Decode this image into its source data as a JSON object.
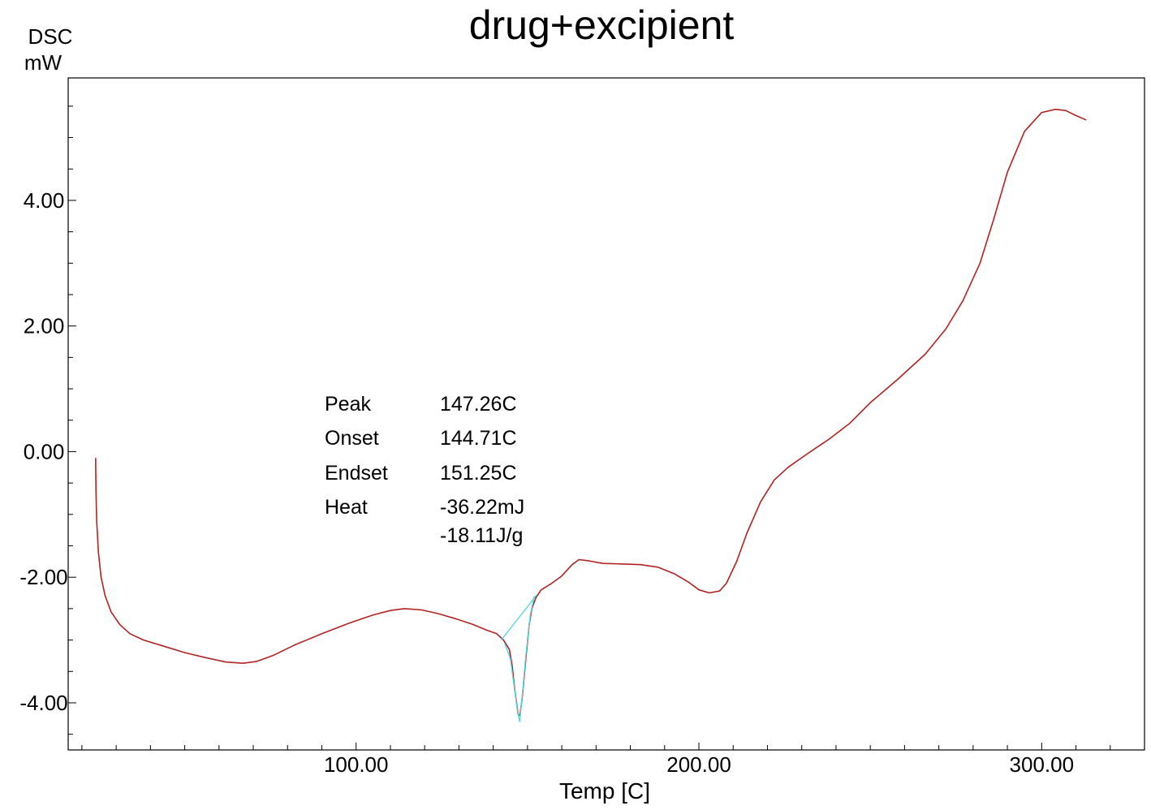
{
  "chart_data": {
    "type": "line",
    "title": "drug+excipient",
    "ylabel": [
      "DSC",
      "mW"
    ],
    "xlabel": "Temp  [C]",
    "xlim": [
      16,
      330
    ],
    "ylim": [
      -4.75,
      5.95
    ],
    "grid": false,
    "x_ticks": [
      {
        "value": 100,
        "label": "100.00"
      },
      {
        "value": 200,
        "label": "200.00"
      },
      {
        "value": 300,
        "label": "300.00"
      }
    ],
    "y_ticks": [
      {
        "value": 4,
        "label": "4.00"
      },
      {
        "value": 2,
        "label": "2.00"
      },
      {
        "value": 0,
        "label": "0.00"
      },
      {
        "value": -2,
        "label": "-2.00"
      },
      {
        "value": -4,
        "label": "-4.00"
      }
    ],
    "colors": {
      "curve": "#b22222",
      "baseline": "#4fd6e0",
      "frame": "#000000"
    },
    "series": [
      {
        "color": "#b22222",
        "points": [
          [
            24,
            -0.1
          ],
          [
            24.1,
            -0.6
          ],
          [
            24.3,
            -1.1
          ],
          [
            24.8,
            -1.6
          ],
          [
            25.6,
            -2.0
          ],
          [
            26.8,
            -2.3
          ],
          [
            28.5,
            -2.55
          ],
          [
            31,
            -2.75
          ],
          [
            34,
            -2.9
          ],
          [
            38,
            -3.0
          ],
          [
            44,
            -3.1
          ],
          [
            50,
            -3.2
          ],
          [
            56,
            -3.28
          ],
          [
            62,
            -3.35
          ],
          [
            67,
            -3.37
          ],
          [
            71,
            -3.34
          ],
          [
            76,
            -3.24
          ],
          [
            82,
            -3.08
          ],
          [
            90,
            -2.9
          ],
          [
            98,
            -2.73
          ],
          [
            105,
            -2.6
          ],
          [
            110,
            -2.53
          ],
          [
            114,
            -2.5
          ],
          [
            119,
            -2.52
          ],
          [
            124,
            -2.58
          ],
          [
            129,
            -2.66
          ],
          [
            134,
            -2.75
          ],
          [
            138,
            -2.84
          ],
          [
            141,
            -2.9
          ],
          [
            143,
            -3.0
          ],
          [
            144.71,
            -3.15
          ],
          [
            145.5,
            -3.4
          ],
          [
            146.3,
            -3.8
          ],
          [
            147.26,
            -4.18
          ],
          [
            147.8,
            -4.2
          ],
          [
            148.5,
            -3.9
          ],
          [
            149.5,
            -3.3
          ],
          [
            150.5,
            -2.75
          ],
          [
            151.25,
            -2.5
          ],
          [
            152.5,
            -2.32
          ],
          [
            154,
            -2.2
          ],
          [
            157,
            -2.1
          ],
          [
            160,
            -1.98
          ],
          [
            163,
            -1.8
          ],
          [
            165,
            -1.72
          ],
          [
            168,
            -1.74
          ],
          [
            172,
            -1.78
          ],
          [
            178,
            -1.79
          ],
          [
            183,
            -1.8
          ],
          [
            188,
            -1.84
          ],
          [
            193,
            -1.95
          ],
          [
            197,
            -2.08
          ],
          [
            200,
            -2.2
          ],
          [
            203,
            -2.25
          ],
          [
            206,
            -2.22
          ],
          [
            208,
            -2.1
          ],
          [
            211,
            -1.75
          ],
          [
            214,
            -1.3
          ],
          [
            218,
            -0.8
          ],
          [
            222,
            -0.45
          ],
          [
            226,
            -0.25
          ],
          [
            232,
            -0.02
          ],
          [
            238,
            0.2
          ],
          [
            244,
            0.45
          ],
          [
            250,
            0.78
          ],
          [
            258,
            1.15
          ],
          [
            266,
            1.55
          ],
          [
            272,
            1.95
          ],
          [
            277,
            2.4
          ],
          [
            282,
            3.0
          ],
          [
            286,
            3.7
          ],
          [
            290,
            4.45
          ],
          [
            295,
            5.1
          ],
          [
            300,
            5.4
          ],
          [
            304,
            5.45
          ],
          [
            307,
            5.43
          ],
          [
            310,
            5.35
          ],
          [
            313,
            5.28
          ]
        ]
      },
      {
        "color": "#4fd6e0",
        "points": [
          [
            142.3,
            -3.0
          ],
          [
            152.7,
            -2.28
          ]
        ]
      },
      {
        "color": "#4fd6e0",
        "points": [
          [
            143.3,
            -3.05
          ],
          [
            145.0,
            -3.3
          ],
          [
            146.0,
            -3.7
          ],
          [
            147.0,
            -4.1
          ],
          [
            147.7,
            -4.3
          ],
          [
            148.6,
            -3.8
          ],
          [
            149.6,
            -3.2
          ],
          [
            150.8,
            -2.6
          ],
          [
            152.0,
            -2.3
          ]
        ]
      }
    ],
    "annotations": [
      {
        "label": "Peak",
        "value": "147.26C"
      },
      {
        "label": "Onset",
        "value": "144.71C"
      },
      {
        "label": "Endset",
        "value": "151.25C"
      },
      {
        "label": "Heat",
        "value": "-36.22mJ"
      },
      {
        "label": "",
        "value": "-18.11J/g"
      }
    ]
  }
}
